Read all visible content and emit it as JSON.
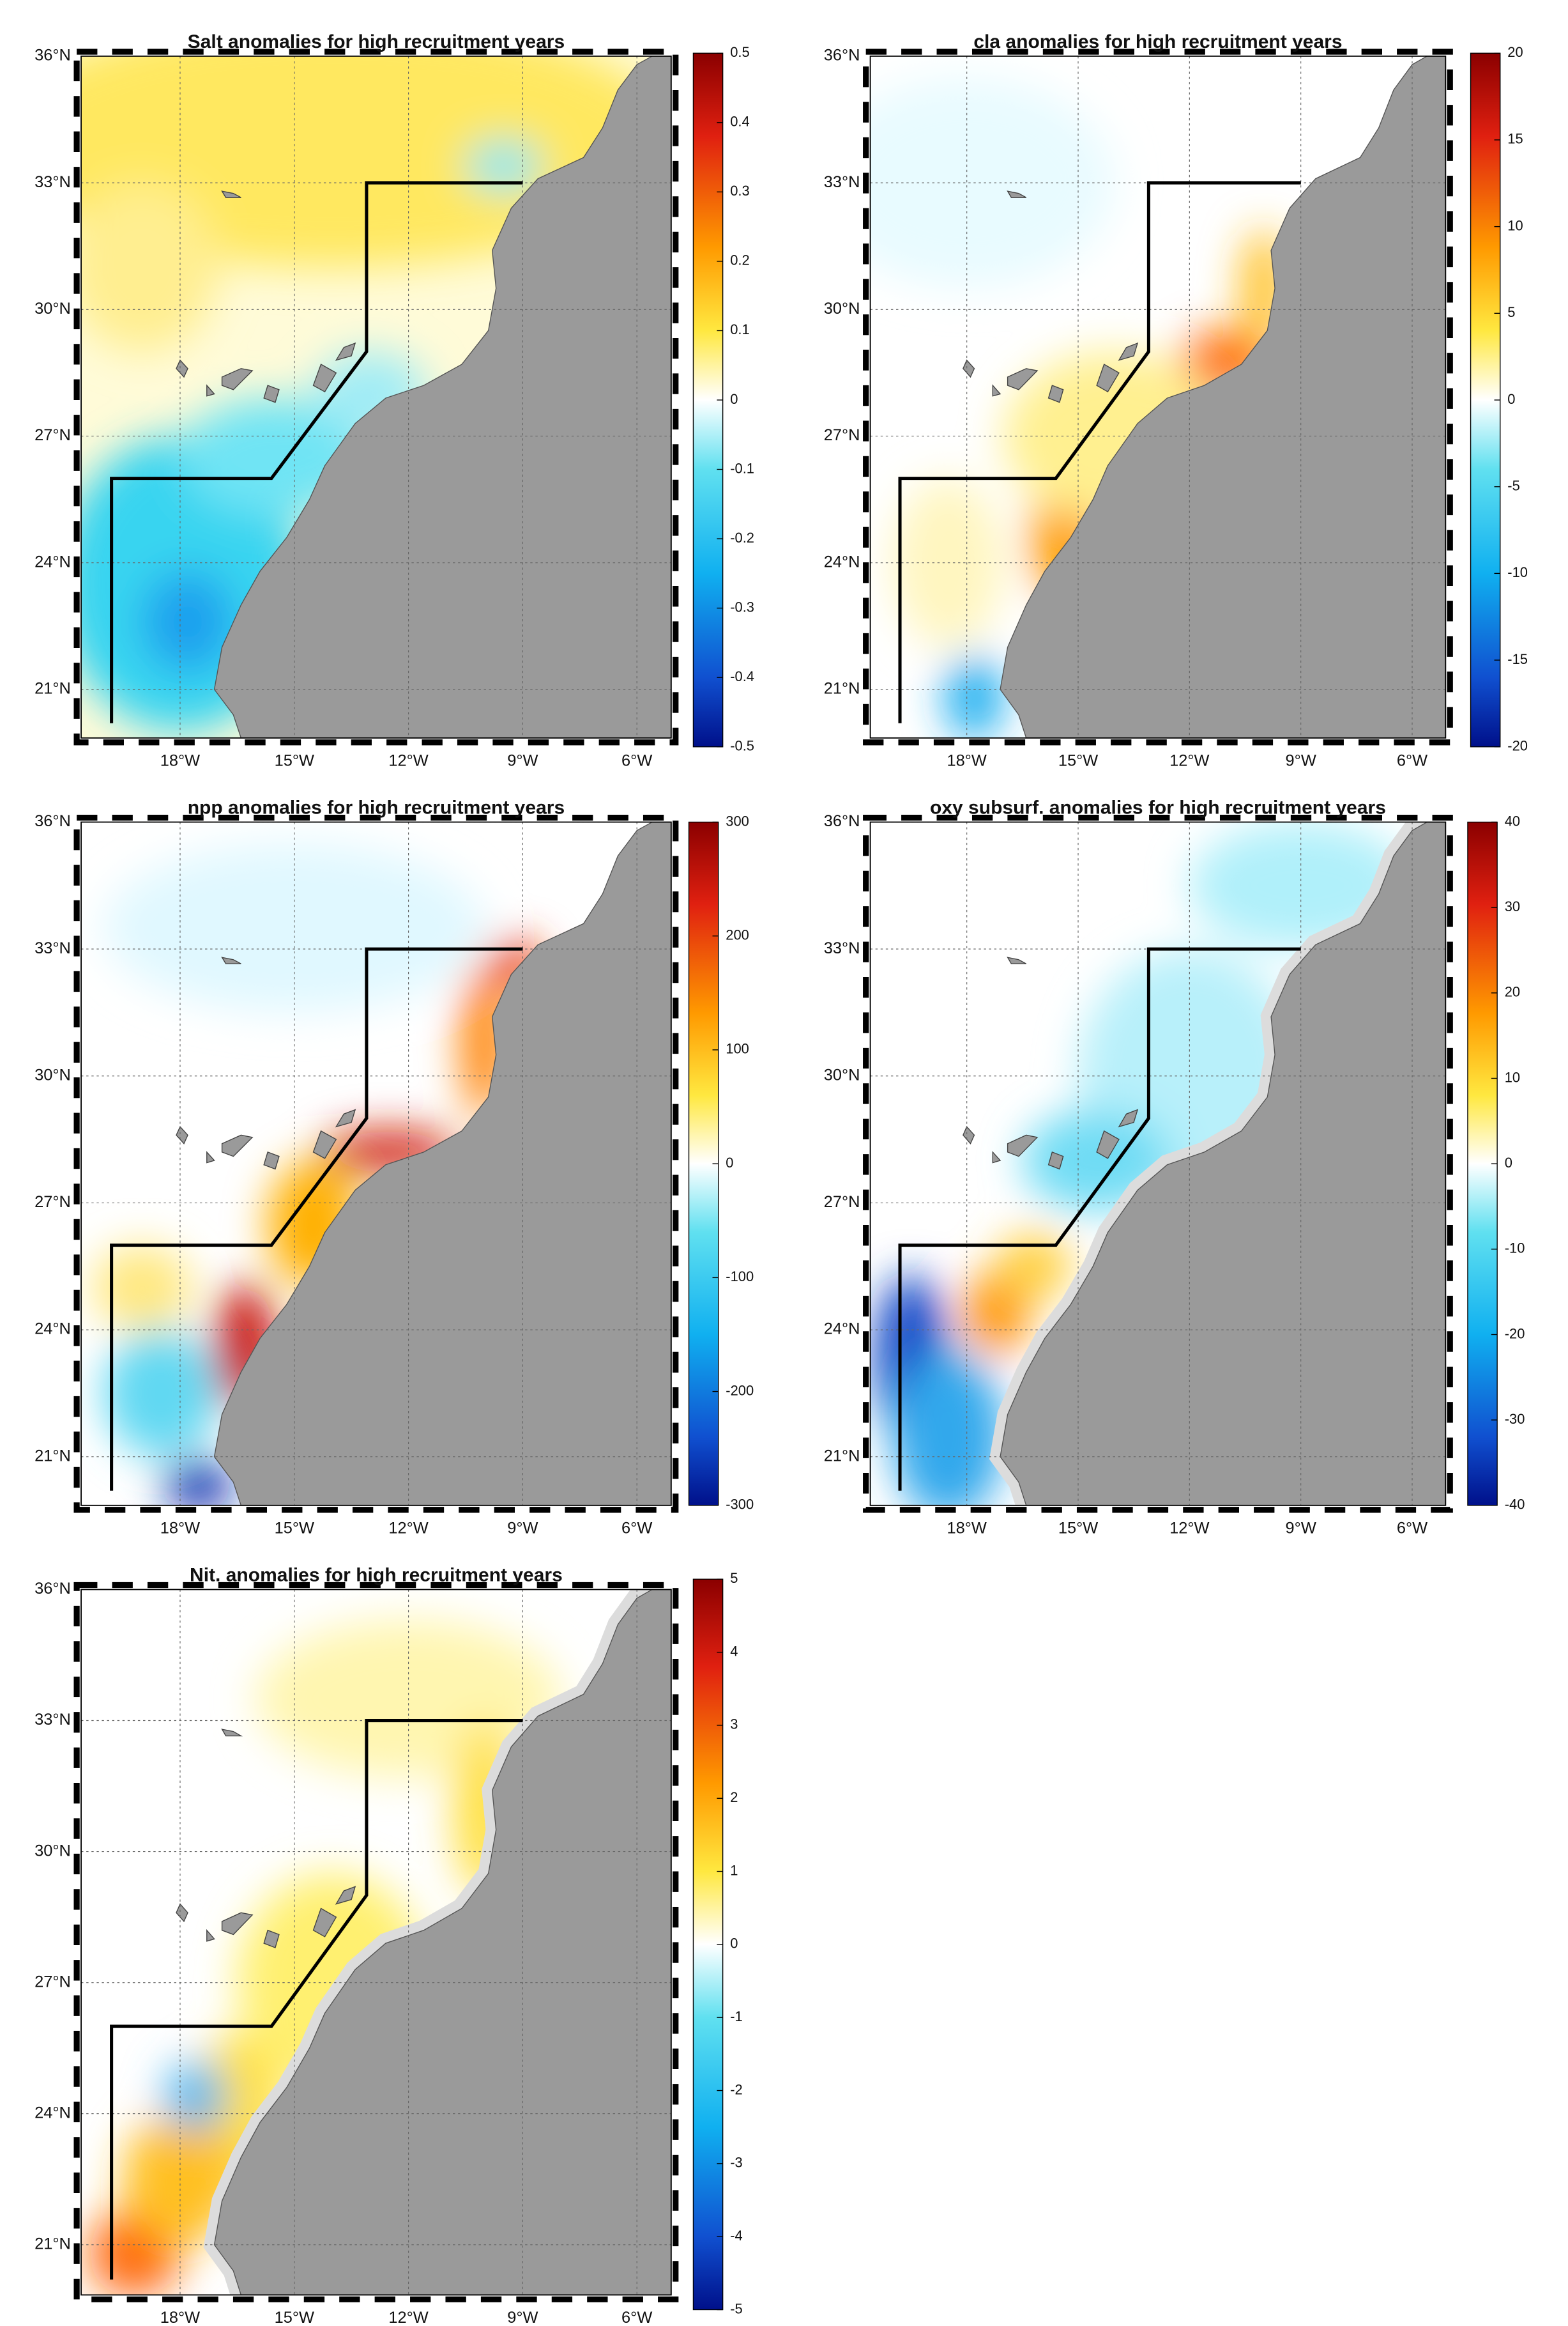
{
  "axes": {
    "lat_labels": [
      "36°N",
      "33°N",
      "30°N",
      "27°N",
      "24°N",
      "21°N"
    ],
    "lon_labels": [
      "18°W",
      "15°W",
      "12°W",
      "9°W",
      "6°W"
    ]
  },
  "panels": [
    {
      "title": "Salt anomalies for high recruitment years",
      "colorbar_ticks": [
        0.5,
        0.4,
        0.3,
        0.2,
        0.1,
        0,
        -0.1,
        -0.2,
        -0.3,
        -0.4,
        -0.5
      ]
    },
    {
      "title": "cla anomalies for high recruitment years",
      "colorbar_ticks": [
        20,
        15,
        10,
        5,
        0,
        -5,
        -10,
        -15,
        -20
      ]
    },
    {
      "title": "npp anomalies for high recruitment years",
      "colorbar_ticks": [
        300,
        200,
        100,
        0,
        -100,
        -200,
        -300
      ]
    },
    {
      "title": "oxy subsurf. anomalies for high recruitment years",
      "colorbar_ticks": [
        40,
        30,
        20,
        10,
        0,
        -10,
        -20,
        -30,
        -40
      ]
    },
    {
      "title": "Nit. anomalies for high recruitment years",
      "colorbar_ticks": [
        5,
        4,
        3,
        2,
        1,
        0,
        -1,
        -2,
        -3,
        -4,
        -5
      ]
    }
  ]
}
